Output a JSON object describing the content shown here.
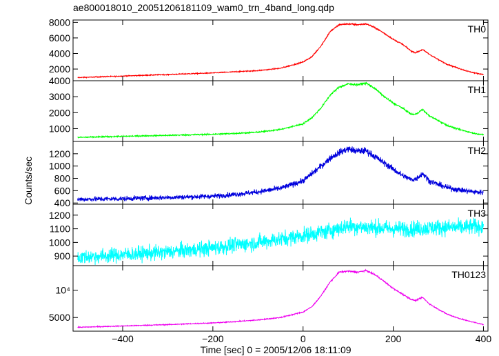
{
  "chart_data": {
    "type": "line",
    "title": "ae800018010_20051206181109_wam0_trn_4band_long.qdp",
    "xlabel": "Time [sec] 0 = 2005/12/06 18:11:09",
    "ylabel": "Counts/sec",
    "xlim": [
      -510,
      410
    ],
    "x_ticks": [
      -400,
      -200,
      0,
      200,
      400
    ],
    "x_tick_labels": [
      "−400",
      "−200",
      "0",
      "200",
      "400"
    ],
    "panels": [
      {
        "name": "TH0",
        "color": "#ff0000",
        "ylim": [
          500,
          8300
        ],
        "y_ticks": [
          2000,
          4000,
          6000,
          8000
        ],
        "y_tick_labels": [
          "2000",
          "4000",
          "6000",
          "8000"
        ],
        "noise": 60,
        "x": [
          -500,
          -400,
          -300,
          -200,
          -150,
          -100,
          -50,
          0,
          20,
          40,
          60,
          80,
          100,
          120,
          140,
          160,
          180,
          200,
          220,
          240,
          250,
          265,
          280,
          300,
          320,
          340,
          360,
          380,
          400
        ],
        "y": [
          900,
          1100,
          1300,
          1500,
          1650,
          1800,
          2100,
          2900,
          3600,
          5000,
          6800,
          7700,
          7800,
          7700,
          7800,
          7300,
          6600,
          5800,
          5200,
          4300,
          4100,
          4500,
          3900,
          3200,
          2600,
          2200,
          1800,
          1500,
          1300
        ]
      },
      {
        "name": "TH1",
        "color": "#00ff00",
        "ylim": [
          200,
          4000
        ],
        "y_ticks": [
          1000,
          2000,
          3000,
          4000
        ],
        "y_tick_labels": [
          "1000",
          "2000",
          "3000",
          "4000"
        ],
        "noise": 40,
        "x": [
          -500,
          -400,
          -300,
          -200,
          -150,
          -100,
          -50,
          0,
          20,
          40,
          60,
          80,
          100,
          120,
          140,
          160,
          180,
          200,
          220,
          240,
          250,
          265,
          280,
          300,
          320,
          340,
          360,
          380,
          400
        ],
        "y": [
          450,
          520,
          580,
          650,
          700,
          780,
          950,
          1300,
          1700,
          2300,
          3100,
          3600,
          3800,
          3750,
          3850,
          3500,
          3000,
          2600,
          2300,
          1900,
          1900,
          2200,
          1800,
          1500,
          1200,
          1000,
          850,
          700,
          620
        ]
      },
      {
        "name": "TH2",
        "color": "#0000dd",
        "ylim": [
          380,
          1400
        ],
        "y_ticks": [
          400,
          600,
          800,
          1000,
          1200
        ],
        "y_tick_labels": [
          "400",
          "600",
          "800",
          "1000",
          "1200"
        ],
        "noise": 35,
        "x": [
          -500,
          -400,
          -300,
          -200,
          -150,
          -100,
          -50,
          0,
          20,
          40,
          60,
          80,
          100,
          120,
          140,
          160,
          180,
          200,
          220,
          240,
          250,
          265,
          280,
          300,
          320,
          340,
          360,
          380,
          400
        ],
        "y": [
          460,
          470,
          490,
          510,
          540,
          580,
          640,
          760,
          880,
          1000,
          1130,
          1220,
          1280,
          1240,
          1250,
          1150,
          1050,
          950,
          850,
          780,
          790,
          880,
          760,
          700,
          650,
          620,
          600,
          580,
          570
        ]
      },
      {
        "name": "TH3",
        "color": "#00ffff",
        "ylim": [
          830,
          1280
        ],
        "y_ticks": [
          900,
          1000,
          1100,
          1200
        ],
        "y_tick_labels": [
          "900",
          "1000",
          "1100",
          "1200"
        ],
        "noise": 38,
        "x": [
          -500,
          -400,
          -300,
          -200,
          -100,
          0,
          50,
          100,
          150,
          200,
          250,
          300,
          350,
          400
        ],
        "y": [
          890,
          910,
          930,
          960,
          1000,
          1050,
          1080,
          1120,
          1110,
          1100,
          1100,
          1110,
          1110,
          1120
        ]
      },
      {
        "name": "TH0123",
        "color": "#ee00ee",
        "ylim": [
          2500,
          14500
        ],
        "y_ticks": [
          5000,
          10000
        ],
        "y_tick_labels": [
          "5000",
          "10⁴"
        ],
        "noise": 80,
        "x": [
          -500,
          -400,
          -300,
          -200,
          -150,
          -100,
          -50,
          0,
          20,
          40,
          60,
          80,
          100,
          120,
          140,
          160,
          180,
          200,
          220,
          240,
          250,
          265,
          280,
          300,
          320,
          340,
          360,
          380,
          400
        ],
        "y": [
          3200,
          3450,
          3700,
          4000,
          4250,
          4550,
          5000,
          6000,
          7000,
          9000,
          11500,
          13300,
          13500,
          13300,
          13600,
          12800,
          11600,
          10300,
          9300,
          8300,
          8100,
          8700,
          7500,
          6500,
          5600,
          5000,
          4500,
          4100,
          3700
        ]
      }
    ]
  }
}
